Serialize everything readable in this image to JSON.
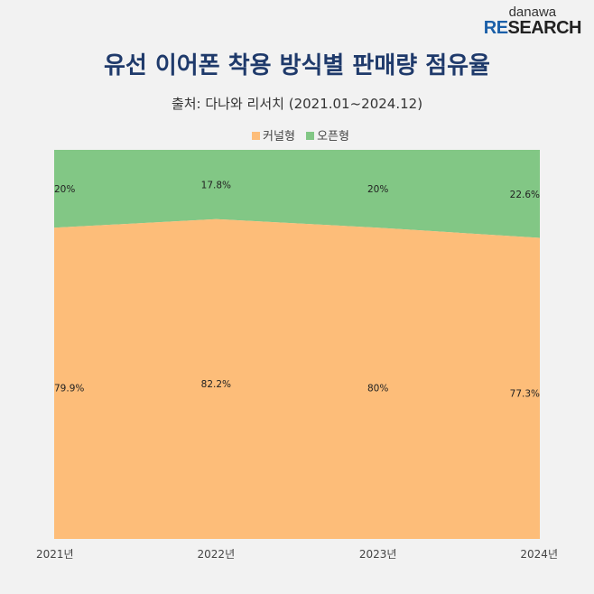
{
  "logo": {
    "line1": "danawa",
    "line2a": "RE",
    "line2b": "SEARCH"
  },
  "title": "유선 이어폰 착용 방식별 판매량 점유율",
  "subtitle": "출처: 다나와 리서치 (2021.01~2024.12)",
  "chart_data": {
    "type": "area",
    "stacked": "percent",
    "title": "유선 이어폰 착용 방식별 판매량 점유율",
    "categories": [
      "2021년",
      "2022년",
      "2023년",
      "2024년"
    ],
    "series": [
      {
        "name": "커널형",
        "color": "#fdbd79",
        "values": [
          79.9,
          82.2,
          80,
          77.3
        ],
        "labels": [
          "79.9%",
          "82.2%",
          "80%",
          "77.3%"
        ]
      },
      {
        "name": "오픈형",
        "color": "#82c785",
        "values": [
          20,
          17.8,
          20,
          22.6
        ],
        "labels": [
          "20%",
          "17.8%",
          "20%",
          "22.6%"
        ]
      }
    ],
    "legend": "top-center",
    "grid": false
  }
}
